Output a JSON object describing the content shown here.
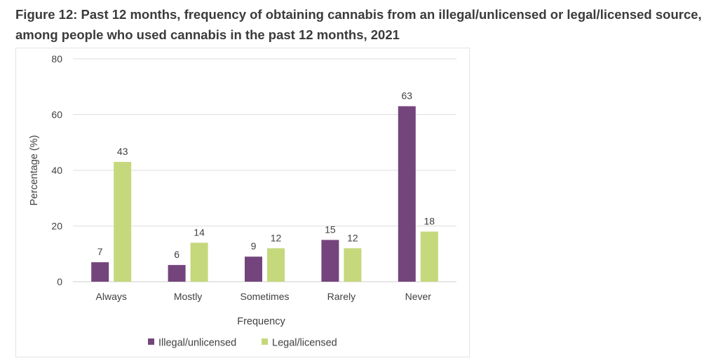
{
  "figure": {
    "title_line1": "Figure 12: Past 12 months, frequency of obtaining cannabis from an illegal/unlicensed or legal/licensed source,",
    "title_line2": "among people who used cannabis in the past 12 months, 2021"
  },
  "chart_data": {
    "type": "bar",
    "categories": [
      "Always",
      "Mostly",
      "Sometimes",
      "Rarely",
      "Never"
    ],
    "series": [
      {
        "name": "Illegal/unlicensed",
        "values": [
          7,
          6,
          9,
          15,
          63
        ],
        "color": "#74457c"
      },
      {
        "name": "Legal/licensed",
        "values": [
          43,
          14,
          12,
          12,
          18
        ],
        "color": "#c5d87c"
      }
    ],
    "xlabel": "Frequency",
    "ylabel": "Percentage (%)",
    "ylim": [
      0,
      80
    ],
    "yticks": [
      0,
      20,
      40,
      60,
      80
    ],
    "grid": true,
    "legend_position": "bottom"
  }
}
